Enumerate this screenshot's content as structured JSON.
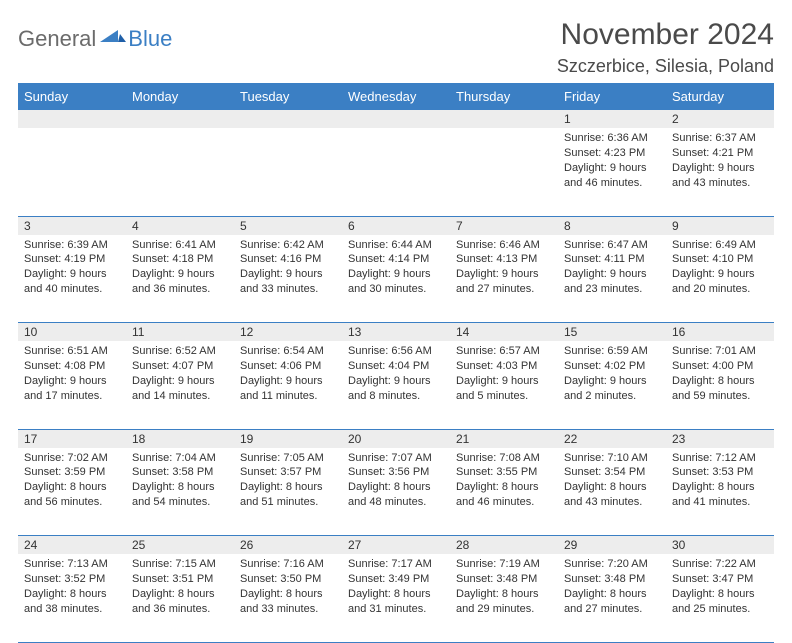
{
  "brand": {
    "part1": "General",
    "part2": "Blue"
  },
  "title": "November 2024",
  "location": "Szczerbice, Silesia, Poland",
  "day_headers": [
    "Sunday",
    "Monday",
    "Tuesday",
    "Wednesday",
    "Thursday",
    "Friday",
    "Saturday"
  ],
  "colors": {
    "header_bg": "#3b7fc4",
    "header_text": "#ffffff",
    "daynum_bg": "#ededed",
    "rule": "#3b7fc4",
    "text": "#333333",
    "logo_gray": "#6b6b6b",
    "logo_blue": "#3b7fc4"
  },
  "weeks": [
    [
      null,
      null,
      null,
      null,
      null,
      {
        "n": "1",
        "sr": "6:36 AM",
        "ss": "4:23 PM",
        "dl": "9 hours and 46 minutes."
      },
      {
        "n": "2",
        "sr": "6:37 AM",
        "ss": "4:21 PM",
        "dl": "9 hours and 43 minutes."
      }
    ],
    [
      {
        "n": "3",
        "sr": "6:39 AM",
        "ss": "4:19 PM",
        "dl": "9 hours and 40 minutes."
      },
      {
        "n": "4",
        "sr": "6:41 AM",
        "ss": "4:18 PM",
        "dl": "9 hours and 36 minutes."
      },
      {
        "n": "5",
        "sr": "6:42 AM",
        "ss": "4:16 PM",
        "dl": "9 hours and 33 minutes."
      },
      {
        "n": "6",
        "sr": "6:44 AM",
        "ss": "4:14 PM",
        "dl": "9 hours and 30 minutes."
      },
      {
        "n": "7",
        "sr": "6:46 AM",
        "ss": "4:13 PM",
        "dl": "9 hours and 27 minutes."
      },
      {
        "n": "8",
        "sr": "6:47 AM",
        "ss": "4:11 PM",
        "dl": "9 hours and 23 minutes."
      },
      {
        "n": "9",
        "sr": "6:49 AM",
        "ss": "4:10 PM",
        "dl": "9 hours and 20 minutes."
      }
    ],
    [
      {
        "n": "10",
        "sr": "6:51 AM",
        "ss": "4:08 PM",
        "dl": "9 hours and 17 minutes."
      },
      {
        "n": "11",
        "sr": "6:52 AM",
        "ss": "4:07 PM",
        "dl": "9 hours and 14 minutes."
      },
      {
        "n": "12",
        "sr": "6:54 AM",
        "ss": "4:06 PM",
        "dl": "9 hours and 11 minutes."
      },
      {
        "n": "13",
        "sr": "6:56 AM",
        "ss": "4:04 PM",
        "dl": "9 hours and 8 minutes."
      },
      {
        "n": "14",
        "sr": "6:57 AM",
        "ss": "4:03 PM",
        "dl": "9 hours and 5 minutes."
      },
      {
        "n": "15",
        "sr": "6:59 AM",
        "ss": "4:02 PM",
        "dl": "9 hours and 2 minutes."
      },
      {
        "n": "16",
        "sr": "7:01 AM",
        "ss": "4:00 PM",
        "dl": "8 hours and 59 minutes."
      }
    ],
    [
      {
        "n": "17",
        "sr": "7:02 AM",
        "ss": "3:59 PM",
        "dl": "8 hours and 56 minutes."
      },
      {
        "n": "18",
        "sr": "7:04 AM",
        "ss": "3:58 PM",
        "dl": "8 hours and 54 minutes."
      },
      {
        "n": "19",
        "sr": "7:05 AM",
        "ss": "3:57 PM",
        "dl": "8 hours and 51 minutes."
      },
      {
        "n": "20",
        "sr": "7:07 AM",
        "ss": "3:56 PM",
        "dl": "8 hours and 48 minutes."
      },
      {
        "n": "21",
        "sr": "7:08 AM",
        "ss": "3:55 PM",
        "dl": "8 hours and 46 minutes."
      },
      {
        "n": "22",
        "sr": "7:10 AM",
        "ss": "3:54 PM",
        "dl": "8 hours and 43 minutes."
      },
      {
        "n": "23",
        "sr": "7:12 AM",
        "ss": "3:53 PM",
        "dl": "8 hours and 41 minutes."
      }
    ],
    [
      {
        "n": "24",
        "sr": "7:13 AM",
        "ss": "3:52 PM",
        "dl": "8 hours and 38 minutes."
      },
      {
        "n": "25",
        "sr": "7:15 AM",
        "ss": "3:51 PM",
        "dl": "8 hours and 36 minutes."
      },
      {
        "n": "26",
        "sr": "7:16 AM",
        "ss": "3:50 PM",
        "dl": "8 hours and 33 minutes."
      },
      {
        "n": "27",
        "sr": "7:17 AM",
        "ss": "3:49 PM",
        "dl": "8 hours and 31 minutes."
      },
      {
        "n": "28",
        "sr": "7:19 AM",
        "ss": "3:48 PM",
        "dl": "8 hours and 29 minutes."
      },
      {
        "n": "29",
        "sr": "7:20 AM",
        "ss": "3:48 PM",
        "dl": "8 hours and 27 minutes."
      },
      {
        "n": "30",
        "sr": "7:22 AM",
        "ss": "3:47 PM",
        "dl": "8 hours and 25 minutes."
      }
    ]
  ],
  "labels": {
    "sunrise": "Sunrise: ",
    "sunset": "Sunset: ",
    "daylight": "Daylight: "
  }
}
